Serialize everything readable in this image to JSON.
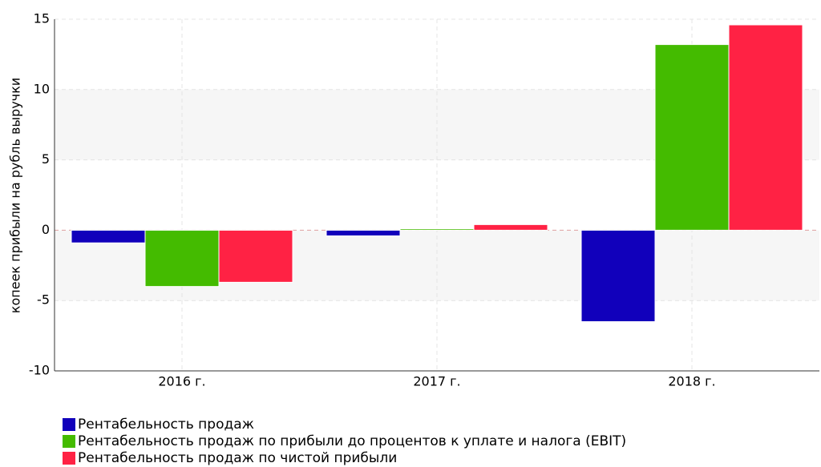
{
  "chart_data": {
    "type": "bar",
    "y_label": "копеек прибыли на рубль выручки",
    "categories": [
      "2016 г.",
      "2017 г.",
      "2018 г."
    ],
    "series": [
      {
        "name": "Рентабельность продаж",
        "color": "#1100bb",
        "values": [
          -0.9,
          -0.4,
          -6.5
        ]
      },
      {
        "name": "Рентабельность продаж по прибыли до процентов к уплате и налога (EBIT)",
        "color": "#44bb00",
        "values": [
          -4.0,
          0.1,
          13.2
        ]
      },
      {
        "name": "Рентабельность продаж по чистой прибыли",
        "color": "#ff2244",
        "values": [
          -3.7,
          0.4,
          14.6
        ]
      }
    ],
    "ylim": [
      -10,
      15
    ],
    "yticks": [
      15,
      10,
      5,
      0,
      -5,
      -10
    ],
    "grid": true,
    "legend": "bottom-left"
  }
}
